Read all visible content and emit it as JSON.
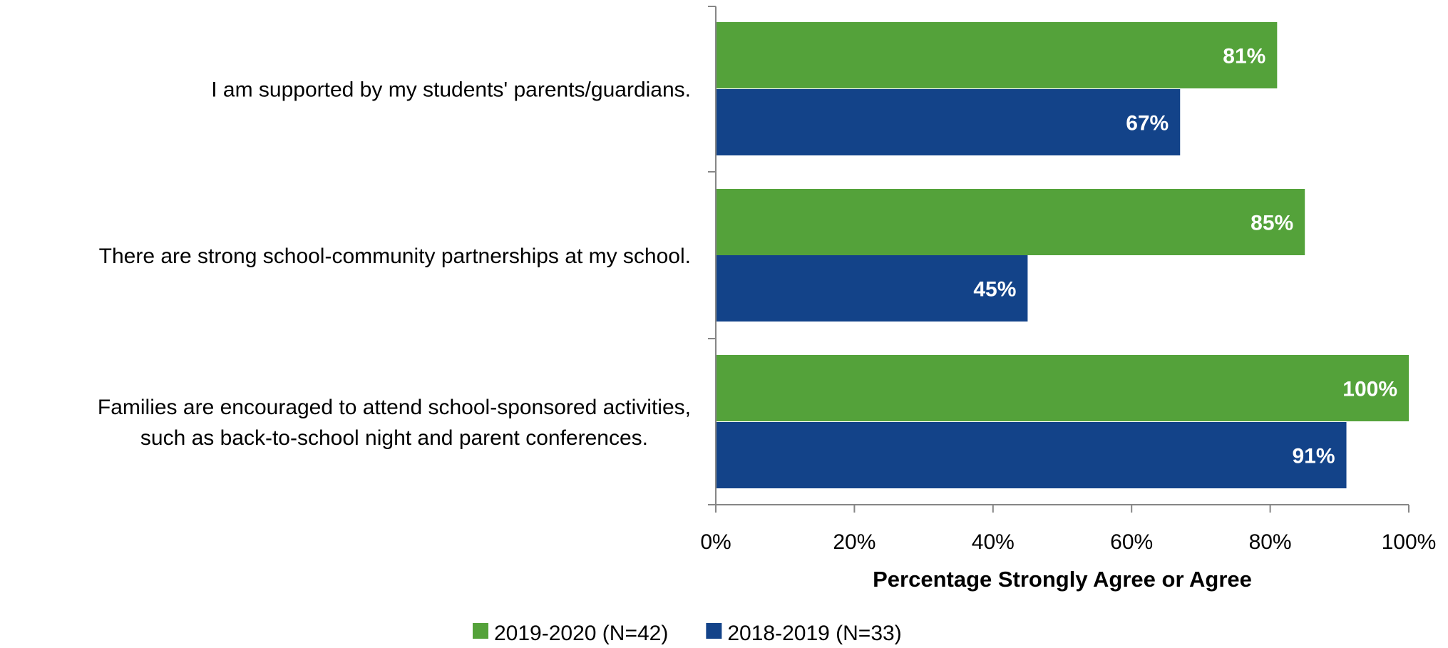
{
  "chart_data": {
    "type": "bar",
    "orientation": "horizontal",
    "categories": [
      [
        "I am supported by my students' parents/guardians."
      ],
      [
        "There are strong school-community partnerships at my school."
      ],
      [
        "Families are encouraged to attend school-sponsored activities,",
        "such as back-to-school night and parent conferences."
      ]
    ],
    "series": [
      {
        "name": "2019-2020 (N=42)",
        "color": "#54a23a",
        "values": [
          81,
          85,
          100
        ],
        "labels": [
          "81%",
          "85%",
          "100%"
        ]
      },
      {
        "name": "2018-2019 (N=33)",
        "color": "#134389",
        "values": [
          67,
          45,
          91
        ],
        "labels": [
          "67%",
          "45%",
          "91%"
        ]
      }
    ],
    "xlim": [
      0,
      100
    ],
    "xticks": [
      0,
      20,
      40,
      60,
      80,
      100
    ],
    "xtick_labels": [
      "0%",
      "20%",
      "40%",
      "60%",
      "80%",
      "100%"
    ],
    "xlabel": "Percentage Strongly Agree or Agree",
    "ylabel": "",
    "title": "",
    "grid": false,
    "legend_position": "bottom-center"
  }
}
